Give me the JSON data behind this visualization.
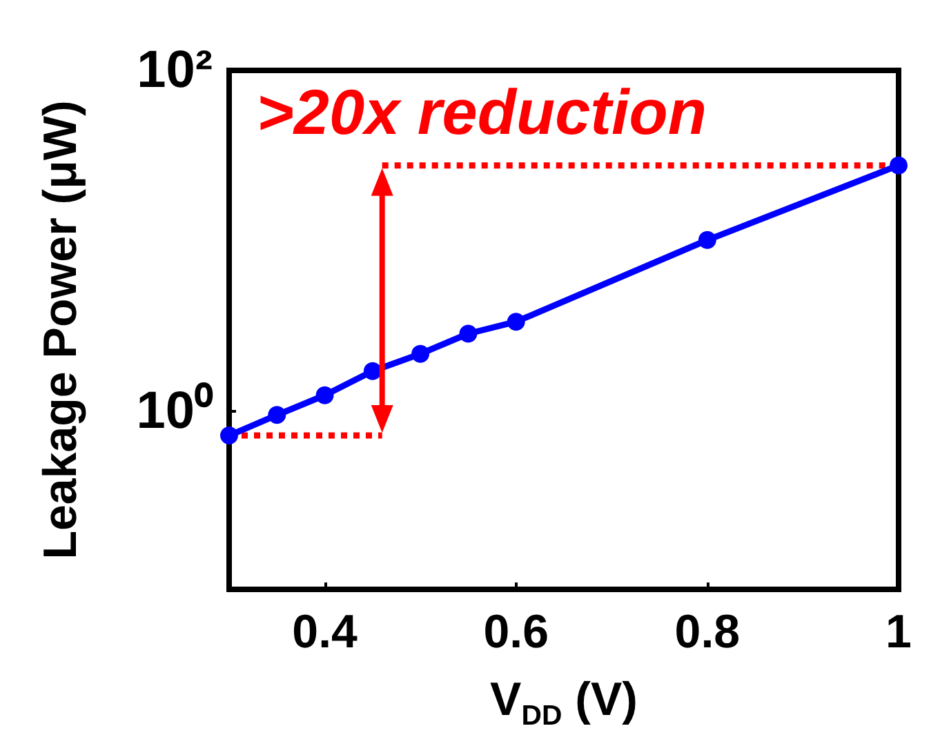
{
  "chart_data": {
    "type": "line",
    "xlabel": "V$_{DD}$ (V)",
    "ylabel": "Leakage Power (μW)",
    "log": "y",
    "marker": "circle",
    "xlim": [
      0.3,
      1.0
    ],
    "xticks": [
      0.4,
      0.6,
      0.8,
      {
        "value": 1.0,
        "label": "1"
      }
    ],
    "ylim": [
      0.09,
      100
    ],
    "yticks": [
      {
        "value": 1,
        "label": "10⁰"
      },
      {
        "value": 100,
        "label": "10²"
      }
    ],
    "annotations": [
      ">20x reduction"
    ],
    "series": [
      {
        "color": "#0000ff",
        "x": [
          0.3,
          0.35,
          0.4,
          0.45,
          0.5,
          0.55,
          0.6,
          0.8,
          1.0
        ],
        "values": [
          0.72,
          0.95,
          1.24,
          1.72,
          2.17,
          2.85,
          3.35,
          10.1,
          27.7
        ]
      },
      {
        "color": "#ff0000",
        "type": "line",
        "marker": "none",
        "line_style": "dotted",
        "x": [
          0.3,
          0.46
        ],
        "values": [
          0.72,
          0.72
        ]
      },
      {
        "color": "#ff0000",
        "type": "line",
        "marker": "none",
        "line_style": "dotted",
        "x": [
          0.46,
          1.0
        ],
        "values": [
          27.7,
          27.7
        ]
      }
    ]
  }
}
